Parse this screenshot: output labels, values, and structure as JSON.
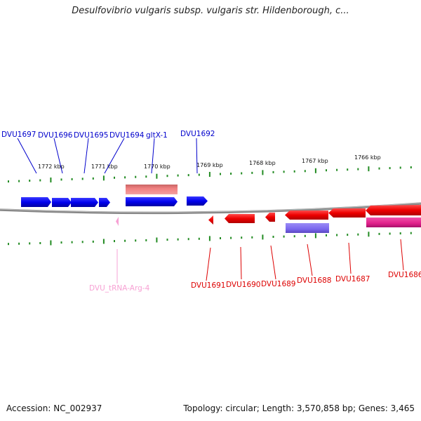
{
  "title": "Desulfovibrio vulgaris subsp. vulgaris str. Hildenborough, c...",
  "footer": {
    "accession": "Accession: NC_002937",
    "summary": "Topology: circular; Length: 3,570,858 bp; Genes: 3,465"
  },
  "colors": {
    "plus_gene": "#0000ee",
    "minus_gene": "#ee0000",
    "trna": "#f7a1d4",
    "pink_box": "#f08080",
    "purple_box": "#7b68ee",
    "magenta_box": "#e0208a",
    "tick": "#228b22",
    "backbone": "#888888"
  },
  "kbp_labels": [
    "1772 kbp",
    "1771 kbp",
    "1770 kbp",
    "1769 kbp",
    "1768 kbp",
    "1767 kbp",
    "1766 kbp"
  ],
  "top_genes": [
    "DVU1697",
    "DVU1696",
    "DVU1695",
    "DVU1694",
    "gltX-1",
    "DVU1692"
  ],
  "bottom_genes": [
    "DVU1691",
    "DVU1690",
    "DVU1689",
    "DVU1688",
    "DVU1687",
    "DVU1686"
  ],
  "trna_label": "DVU_tRNA-Arg-4"
}
